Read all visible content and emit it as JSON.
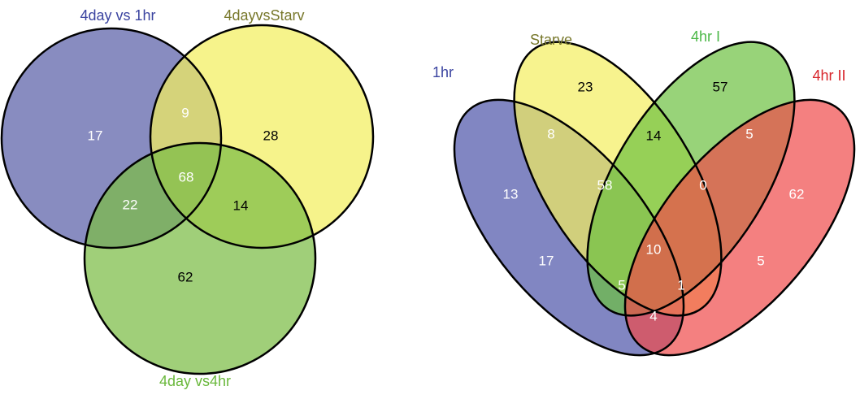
{
  "venn3": {
    "sets": [
      {
        "name": "4day vs 1hr",
        "color": "#5a5fa8",
        "label_color": "#3b44a0"
      },
      {
        "name": "4dayvsStarv",
        "color": "#f3ee5e",
        "label_color": "#77772a"
      },
      {
        "name": "4day vs4hr",
        "color": "#7cbd45",
        "label_color": "#6ab83c"
      }
    ],
    "regions": [
      17,
      9,
      28,
      68,
      22,
      14,
      62
    ]
  },
  "venn4": {
    "sets": [
      {
        "name": "1hr",
        "color": "#4b52a8",
        "label_color": "#3b44a0"
      },
      {
        "name": "Starve",
        "color": "#f3ee5e",
        "label_color": "#77772a"
      },
      {
        "name": "4hr I",
        "color": "#6cc040",
        "label_color": "#4cb848"
      },
      {
        "name": "4hr II",
        "color": "#ef4a4a",
        "label_color": "#d8262c"
      }
    ],
    "regions": [
      23,
      57,
      8,
      14,
      5,
      13,
      58,
      0,
      62,
      17,
      10,
      5,
      5,
      1,
      4
    ]
  }
}
